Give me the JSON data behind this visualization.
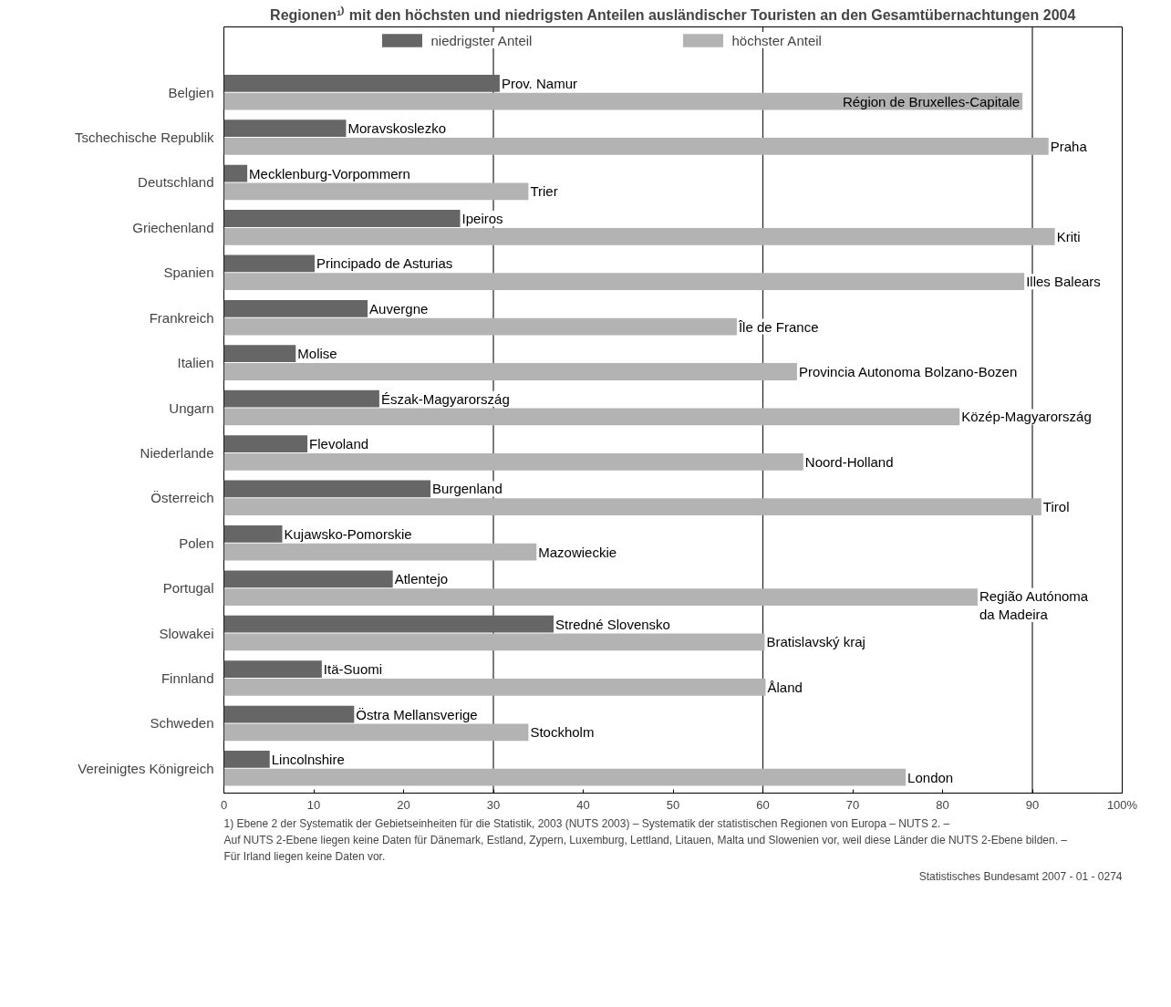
{
  "chart_data": {
    "type": "bar",
    "orientation": "horizontal",
    "title": "Regionen¹⁾ mit den höchsten und niedrigsten Anteilen ausländischer Touristen an den Gesamtübernachtungen 2004",
    "categories": [
      "Belgien",
      "Tschechische Republik",
      "Deutschland",
      "Griechenland",
      "Spanien",
      "Frankreich",
      "Italien",
      "Ungarn",
      "Niederlande",
      "Österreich",
      "Polen",
      "Portugal",
      "Slowakei",
      "Finnland",
      "Schweden",
      "Vereinigtes Königreich"
    ],
    "series": [
      {
        "name": "niedrigster Anteil",
        "color": "#666666",
        "values": [
          30.7,
          13.6,
          2.6,
          26.3,
          10.1,
          16.0,
          8.0,
          17.3,
          9.3,
          23.0,
          6.5,
          18.8,
          36.7,
          10.9,
          14.5,
          5.1
        ],
        "value_labels": [
          "Prov. Namur",
          "Moravskoslezko",
          "Mecklenburg-Vorpommern",
          "Ipeiros",
          "Principado de Asturias",
          "Auvergne",
          "Molise",
          "Észak-Magyarország",
          "Flevoland",
          "Burgenland",
          "Kujawsko-Pomorskie",
          "Atlentejo",
          "Stredné Slovensko",
          "Itä-Suomi",
          "Östra Mellansverige",
          "Lincolnshire"
        ]
      },
      {
        "name": "höchster Anteil",
        "color": "#b3b3b3",
        "values": [
          88.9,
          91.8,
          33.9,
          92.5,
          89.1,
          57.1,
          63.8,
          81.9,
          64.5,
          91.0,
          34.8,
          83.9,
          60.2,
          60.3,
          33.9,
          75.9
        ],
        "value_labels": [
          "Région de Bruxelles-Capitale",
          "Praha",
          "Trier",
          "Kriti",
          "Illes Balears",
          "Île de France",
          "Provincia Autonoma Bolzano-Bozen",
          "Közép-Magyarország",
          "Noord-Holland",
          "Tirol",
          "Mazowieckie",
          "Região Autónoma\nda Madeira",
          "Bratislavský kraj",
          "Åland",
          "Stockholm",
          "London"
        ]
      }
    ],
    "xlim": [
      0,
      100
    ],
    "xticks": [
      0,
      10,
      20,
      30,
      40,
      50,
      60,
      70,
      80,
      90,
      {
        "value": 100,
        "label": "100%"
      }
    ],
    "ref_lines": [
      {
        "axis": "x",
        "value": 30,
        "color": "#222222"
      },
      {
        "axis": "x",
        "value": 60,
        "color": "#222222"
      },
      {
        "axis": "x",
        "value": 90,
        "color": "#222222"
      }
    ],
    "legend": "top",
    "annotations": [
      "1) Ebene 2 der Systematik der Gebietseinheiten für die Statistik, 2003 (NUTS 2003) – Systematik der statistischen Regionen von Europa – NUTS 2. –",
      "Auf NUTS 2-Ebene liegen keine Daten für Dänemark, Estland, Zypern, Luxemburg, Lettland, Litauen, Malta und Slowenien vor, weil diese Länder die NUTS 2-Ebene bilden. –",
      "Für Irland liegen keine Daten vor.",
      "Statistisches Bundesamt 2007 - 01 - 0274"
    ]
  }
}
